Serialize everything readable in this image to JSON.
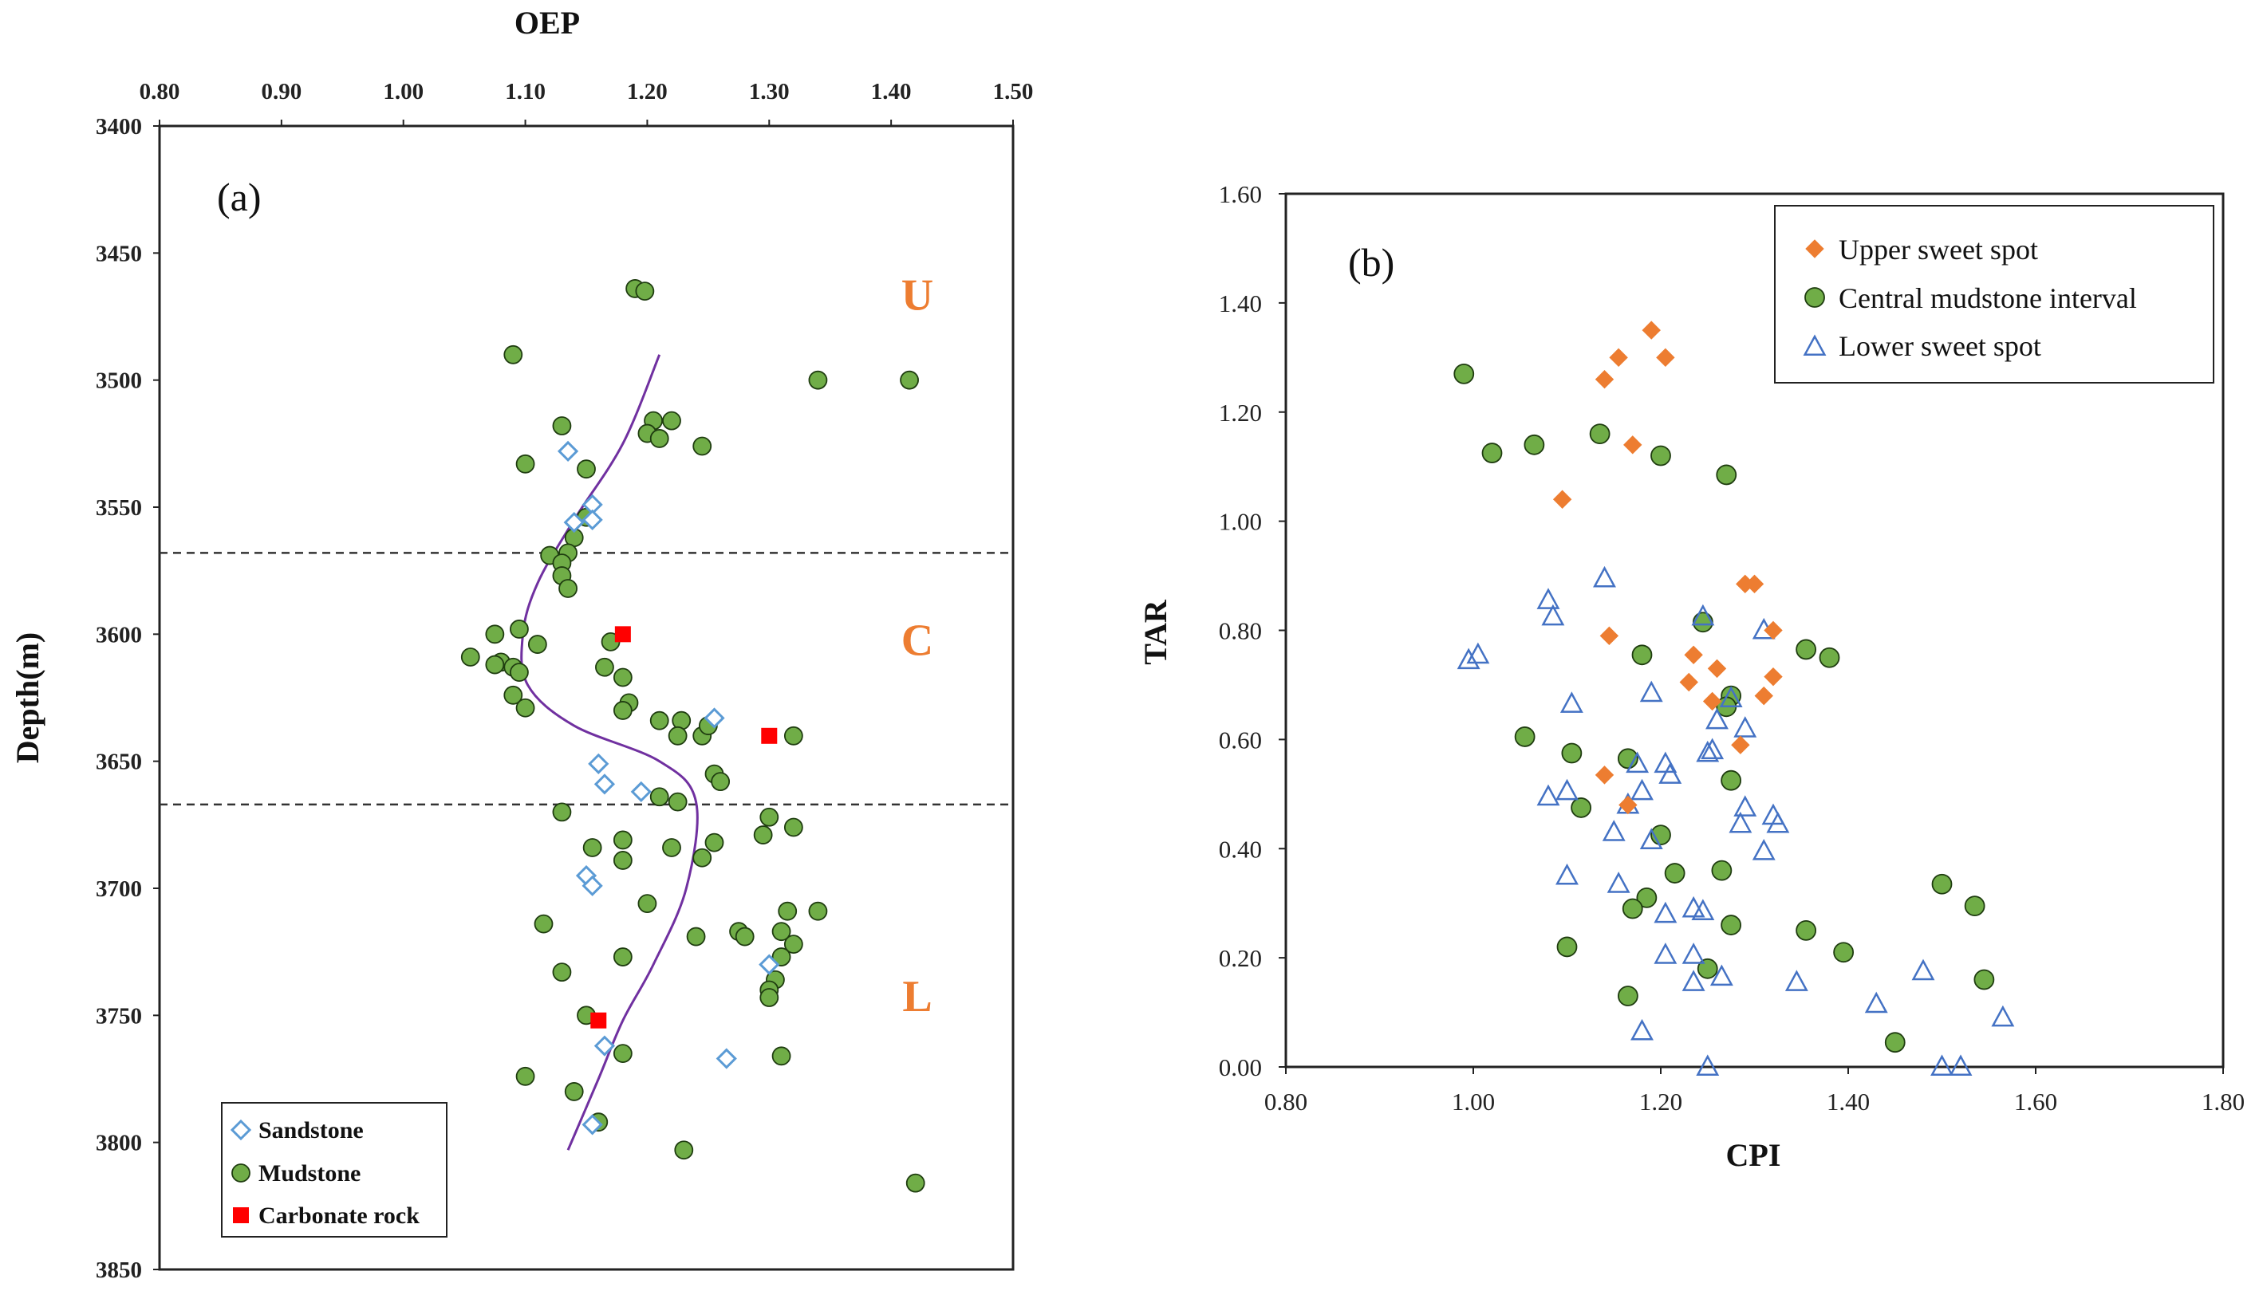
{
  "chart_data": [
    {
      "id": "a",
      "type": "scatter",
      "panel_label": "(a)",
      "title": "OEP",
      "xlabel": "OEP",
      "ylabel": "Depth(m)",
      "xlim": [
        0.8,
        1.5
      ],
      "ylim": [
        3400,
        3850
      ],
      "y_inverted": true,
      "x_ticks": [
        "0.80",
        "0.90",
        "1.00",
        "1.10",
        "1.20",
        "1.30",
        "1.40",
        "1.50"
      ],
      "y_ticks": [
        "3400",
        "3450",
        "3500",
        "3550",
        "3600",
        "3650",
        "3700",
        "3750",
        "3800",
        "3850"
      ],
      "colors": {
        "sandstone": "#5b9bd5",
        "mudstone": "#70ad47",
        "carbonate": "#ff0000",
        "trend": "#7030a0",
        "zone_label": "#ed7d31"
      },
      "boundaries": [
        3568,
        3667
      ],
      "zones": [
        {
          "label": "U",
          "depth": 3466
        },
        {
          "label": "C",
          "depth": 3602
        },
        {
          "label": "L",
          "depth": 3742
        }
      ],
      "legend": {
        "position": "bottom-left",
        "entries": [
          "Sandstone",
          "Mudstone",
          "Carbonate rock"
        ]
      },
      "trend_line": {
        "name": "trend",
        "x": [
          1.21,
          1.18,
          1.14,
          1.11,
          1.098,
          1.102,
          1.14,
          1.21,
          1.24,
          1.232,
          1.205,
          1.18,
          1.16,
          1.135
        ],
        "y": [
          3490,
          3525,
          3555,
          3580,
          3600,
          3620,
          3636,
          3650,
          3666,
          3700,
          3730,
          3752,
          3775,
          3803
        ]
      },
      "series": [
        {
          "name": "Sandstone",
          "marker": "diamond",
          "x": [
            1.135,
            1.155,
            1.14,
            1.155,
            1.16,
            1.165,
            1.195,
            1.255,
            1.15,
            1.155,
            1.3,
            1.165,
            1.265,
            1.155
          ],
          "y": [
            3528,
            3549,
            3556,
            3555,
            3651,
            3659,
            3662,
            3633,
            3695,
            3699,
            3730,
            3762,
            3767,
            3793
          ]
        },
        {
          "name": "Mudstone",
          "marker": "circle",
          "x": [
            1.19,
            1.198,
            1.09,
            1.34,
            1.415,
            1.13,
            1.205,
            1.22,
            1.2,
            1.21,
            1.245,
            1.1,
            1.15,
            1.15,
            1.14,
            1.135,
            1.12,
            1.13,
            1.13,
            1.135,
            1.095,
            1.075,
            1.08,
            1.055,
            1.09,
            1.095,
            1.11,
            1.075,
            1.09,
            1.1,
            1.17,
            1.165,
            1.18,
            1.185,
            1.18,
            1.21,
            1.228,
            1.245,
            1.25,
            1.225,
            1.255,
            1.26,
            1.21,
            1.225,
            1.13,
            1.155,
            1.18,
            1.18,
            1.22,
            1.245,
            1.255,
            1.3,
            1.295,
            1.32,
            1.2,
            1.115,
            1.24,
            1.275,
            1.28,
            1.31,
            1.32,
            1.315,
            1.31,
            1.18,
            1.13,
            1.305,
            1.3,
            1.3,
            1.31,
            1.32,
            1.34,
            1.15,
            1.18,
            1.1,
            1.14,
            1.16,
            1.23,
            1.42
          ],
          "y": [
            3464,
            3465,
            3490,
            3500,
            3500,
            3518,
            3516,
            3516,
            3521,
            3523,
            3526,
            3533,
            3535,
            3554,
            3562,
            3568,
            3569,
            3572,
            3577,
            3582,
            3598,
            3600,
            3611,
            3609,
            3613,
            3615,
            3604,
            3612,
            3624,
            3629,
            3603,
            3613,
            3617,
            3627,
            3630,
            3634,
            3634,
            3640,
            3636,
            3640,
            3655,
            3658,
            3664,
            3666,
            3670,
            3684,
            3681,
            3689,
            3684,
            3688,
            3682,
            3672,
            3679,
            3676,
            3706,
            3714,
            3719,
            3717,
            3719,
            3717,
            3722,
            3709,
            3727,
            3727,
            3733,
            3736,
            3740,
            3743,
            3766,
            3640,
            3709,
            3750,
            3765,
            3774,
            3780,
            3792,
            3803,
            3816
          ]
        },
        {
          "name": "Carbonate rock",
          "marker": "square",
          "x": [
            1.18,
            1.3,
            1.16
          ],
          "y": [
            3600,
            3640,
            3752
          ]
        }
      ]
    },
    {
      "id": "b",
      "type": "scatter",
      "panel_label": "(b)",
      "title": "",
      "xlabel": "CPI",
      "ylabel": "TAR",
      "xlim": [
        0.8,
        1.8
      ],
      "ylim": [
        0.0,
        1.6
      ],
      "x_ticks": [
        "0.80",
        "1.00",
        "1.20",
        "1.40",
        "1.60",
        "1.80"
      ],
      "y_ticks": [
        "0.00",
        "0.20",
        "0.40",
        "0.60",
        "0.80",
        "1.00",
        "1.20",
        "1.40",
        "1.60"
      ],
      "colors": {
        "upper": "#ed7d31",
        "central": "#70ad47",
        "lower": "#4472c4"
      },
      "legend": {
        "position": "top-right",
        "entries": [
          "Upper sweet spot",
          "Central mudstone interval",
          "Lower sweet spot"
        ]
      },
      "series": [
        {
          "name": "Upper sweet spot",
          "marker": "diamond",
          "x": [
            1.19,
            1.155,
            1.205,
            1.14,
            1.17,
            1.095,
            1.29,
            1.3,
            1.145,
            1.32,
            1.235,
            1.26,
            1.23,
            1.32,
            1.255,
            1.31,
            1.285,
            1.14,
            1.165
          ],
          "y": [
            1.35,
            1.3,
            1.3,
            1.26,
            1.14,
            1.04,
            0.885,
            0.885,
            0.79,
            0.8,
            0.755,
            0.73,
            0.705,
            0.715,
            0.67,
            0.68,
            0.59,
            0.535,
            0.48
          ]
        },
        {
          "name": "Central mudstone interval",
          "marker": "circle",
          "x": [
            0.99,
            1.02,
            1.065,
            1.135,
            1.2,
            1.27,
            1.245,
            1.18,
            1.355,
            1.38,
            1.275,
            1.27,
            1.055,
            1.105,
            1.165,
            1.115,
            1.275,
            1.2,
            1.215,
            1.265,
            1.185,
            1.17,
            1.275,
            1.1,
            1.25,
            1.165,
            1.5,
            1.535,
            1.355,
            1.395,
            1.545,
            1.45
          ],
          "y": [
            1.27,
            1.125,
            1.14,
            1.16,
            1.12,
            1.085,
            0.815,
            0.755,
            0.765,
            0.75,
            0.68,
            0.66,
            0.605,
            0.575,
            0.565,
            0.475,
            0.525,
            0.425,
            0.355,
            0.36,
            0.31,
            0.29,
            0.26,
            0.22,
            0.18,
            0.13,
            0.335,
            0.295,
            0.25,
            0.21,
            0.16,
            0.045
          ]
        },
        {
          "name": "Lower sweet spot",
          "marker": "triangle",
          "x": [
            1.14,
            1.08,
            1.085,
            0.995,
            1.005,
            1.245,
            1.31,
            1.105,
            1.19,
            1.26,
            1.275,
            1.29,
            1.25,
            1.255,
            1.175,
            1.205,
            1.21,
            1.08,
            1.1,
            1.165,
            1.18,
            1.29,
            1.285,
            1.32,
            1.325,
            1.15,
            1.19,
            1.31,
            1.1,
            1.155,
            1.205,
            1.235,
            1.245,
            1.205,
            1.235,
            1.265,
            1.235,
            1.345,
            1.43,
            1.48,
            1.18,
            1.565,
            1.25,
            1.5,
            1.52
          ],
          "y": [
            0.895,
            0.855,
            0.825,
            0.745,
            0.755,
            0.825,
            0.8,
            0.665,
            0.685,
            0.635,
            0.675,
            0.62,
            0.575,
            0.58,
            0.555,
            0.555,
            0.535,
            0.495,
            0.505,
            0.48,
            0.505,
            0.475,
            0.445,
            0.46,
            0.445,
            0.43,
            0.415,
            0.395,
            0.35,
            0.335,
            0.28,
            0.29,
            0.285,
            0.205,
            0.205,
            0.165,
            0.155,
            0.155,
            0.115,
            0.175,
            0.065,
            0.09,
            0.0,
            0.0,
            0.0
          ]
        }
      ]
    }
  ]
}
